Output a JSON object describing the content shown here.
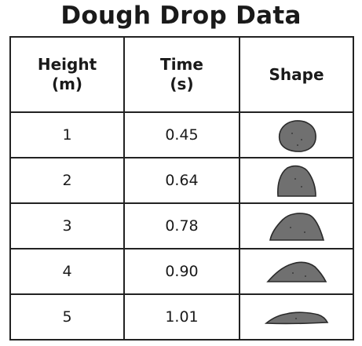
{
  "title": "Dough Drop Data",
  "table": {
    "headers": {
      "height": [
        "Height",
        "(m)"
      ],
      "time": [
        "Time",
        "(s)"
      ],
      "shape": [
        "Shape"
      ]
    },
    "rows": [
      {
        "height": "1",
        "time": "0.45",
        "shape_icon": "dough-ball-round-icon"
      },
      {
        "height": "2",
        "time": "0.64",
        "shape_icon": "dough-ball-slightly-flat-icon"
      },
      {
        "height": "3",
        "time": "0.78",
        "shape_icon": "dough-ball-flattened-icon"
      },
      {
        "height": "4",
        "time": "0.90",
        "shape_icon": "dough-ball-flatter-icon"
      },
      {
        "height": "5",
        "time": "1.01",
        "shape_icon": "dough-ball-flattest-icon"
      }
    ]
  },
  "colors": {
    "dough_fill": "#707070",
    "dough_outline": "#2a2a2a",
    "table_border": "#222222"
  }
}
